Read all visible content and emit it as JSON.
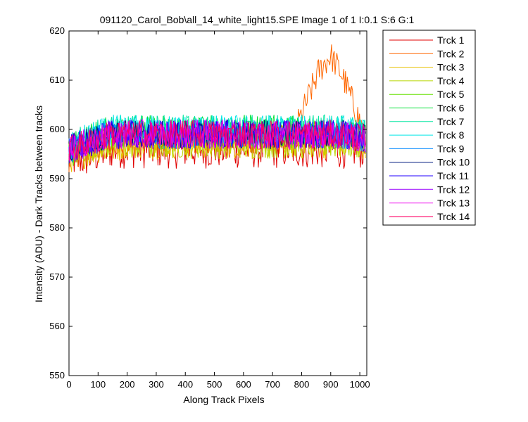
{
  "chart_data": {
    "type": "line",
    "title": "091120_Carol_Bob\\all_14_white_light15.SPE  Image 1 of 1  I:0.1  S:6  G:1",
    "xlabel": "Along Track Pixels",
    "ylabel": "Intensity (ADU) - Dark Tracks between tracks",
    "xlim": [
      0,
      1024
    ],
    "ylim": [
      550,
      620
    ],
    "xticks": [
      0,
      100,
      200,
      300,
      400,
      500,
      600,
      700,
      800,
      900,
      1000
    ],
    "yticks": [
      550,
      560,
      570,
      580,
      590,
      600,
      610,
      620
    ],
    "grid": false,
    "legend_position": "outside-top-right",
    "series": [
      {
        "name": "Trck 1",
        "color": "#e00000",
        "values": [
          594,
          594,
          595,
          596,
          596,
          596,
          596,
          596,
          596,
          596,
          596,
          596,
          596,
          596,
          596,
          596,
          596,
          596,
          596,
          596,
          596,
          596
        ]
      },
      {
        "name": "Trck 2",
        "color": "#ff6600",
        "values": [
          594,
          596,
          597,
          598,
          598,
          598,
          598,
          598,
          598,
          598,
          598,
          598,
          598,
          598,
          598,
          598,
          600,
          606,
          612,
          615,
          611,
          598
        ]
      },
      {
        "name": "Trck 3",
        "color": "#e8c000",
        "values": [
          594,
          595,
          596,
          596,
          597,
          597,
          597,
          597,
          597,
          597,
          597,
          597,
          597,
          597,
          597,
          597,
          597,
          597,
          597,
          597,
          597,
          597
        ]
      },
      {
        "name": "Trck 4",
        "color": "#b8d800",
        "values": [
          595,
          596,
          597,
          597,
          597,
          597,
          597,
          597,
          597,
          597,
          597,
          597,
          597,
          597,
          597,
          597,
          597,
          597,
          597,
          597,
          597,
          597
        ]
      },
      {
        "name": "Trck 5",
        "color": "#66e000",
        "values": [
          595,
          597,
          598,
          599,
          599,
          599,
          599,
          599,
          599,
          599,
          599,
          599,
          599,
          599,
          599,
          599,
          599,
          599,
          599,
          599,
          599,
          598
        ]
      },
      {
        "name": "Trck 6",
        "color": "#00e033",
        "values": [
          596,
          598,
          599,
          600,
          600,
          600,
          600,
          600,
          600,
          600,
          600,
          600,
          600,
          600,
          600,
          600,
          600,
          600,
          600,
          600,
          600,
          599
        ]
      },
      {
        "name": "Trck 7",
        "color": "#00e6a0",
        "values": [
          596,
          598,
          599,
          600,
          600,
          600,
          600,
          600,
          600,
          600,
          600,
          600,
          600,
          600,
          600,
          600,
          600,
          600,
          600,
          600,
          600,
          599
        ]
      },
      {
        "name": "Trck 8",
        "color": "#00e6e6",
        "values": [
          596,
          598,
          599,
          600,
          600,
          600,
          600,
          600,
          600,
          600,
          600,
          600,
          600,
          600,
          600,
          600,
          600,
          600,
          600,
          600,
          600,
          599
        ]
      },
      {
        "name": "Trck 9",
        "color": "#0088ff",
        "values": [
          596,
          597,
          598,
          599,
          599,
          599,
          599,
          599,
          599,
          599,
          599,
          599,
          599,
          599,
          599,
          599,
          599,
          599,
          599,
          599,
          599,
          598
        ]
      },
      {
        "name": "Trck 10",
        "color": "#001a80",
        "values": [
          596,
          597,
          598,
          599,
          599,
          599,
          599,
          599,
          599,
          599,
          599,
          599,
          599,
          599,
          599,
          599,
          599,
          599,
          599,
          599,
          599,
          598
        ]
      },
      {
        "name": "Trck 11",
        "color": "#2200ff",
        "values": [
          596,
          597,
          598,
          599,
          599,
          599,
          599,
          599,
          599,
          599,
          599,
          599,
          599,
          599,
          599,
          599,
          599,
          599,
          599,
          599,
          599,
          598
        ]
      },
      {
        "name": "Trck 12",
        "color": "#9900ff",
        "values": [
          596,
          597,
          598,
          599,
          599,
          599,
          599,
          599,
          599,
          599,
          599,
          599,
          599,
          599,
          599,
          599,
          599,
          599,
          599,
          599,
          599,
          598
        ]
      },
      {
        "name": "Trck 13",
        "color": "#ee00ee",
        "values": [
          596,
          597,
          598,
          599,
          599,
          599,
          599,
          599,
          599,
          599,
          599,
          599,
          599,
          599,
          599,
          599,
          599,
          599,
          599,
          599,
          599,
          598
        ]
      },
      {
        "name": "Trck 14",
        "color": "#ff0066",
        "values": [
          596,
          597,
          598,
          599,
          599,
          599,
          599,
          599,
          599,
          599,
          599,
          599,
          599,
          599,
          599,
          599,
          599,
          599,
          599,
          599,
          599,
          598
        ]
      }
    ],
    "x": [
      0,
      50,
      100,
      150,
      200,
      250,
      300,
      350,
      400,
      450,
      500,
      550,
      600,
      650,
      700,
      750,
      780,
      820,
      860,
      900,
      940,
      1024
    ]
  }
}
